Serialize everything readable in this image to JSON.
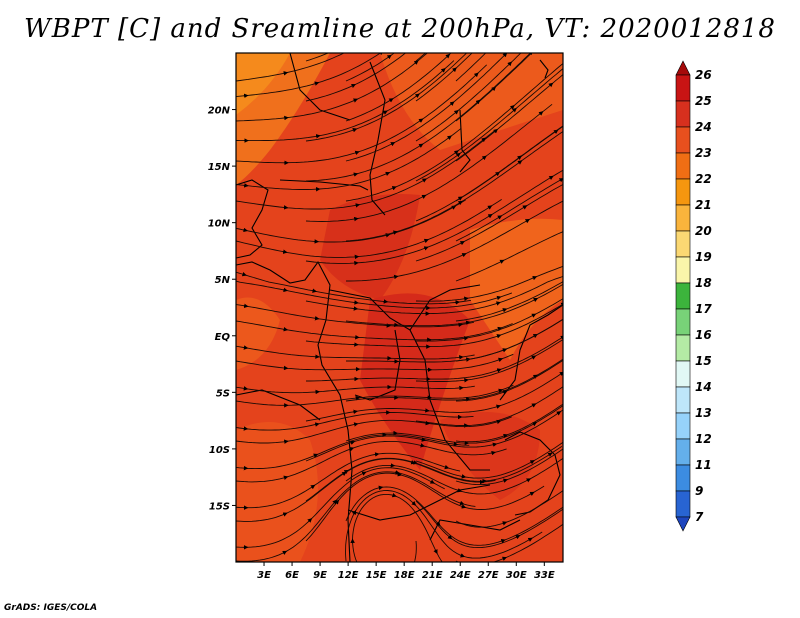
{
  "title": "WBPT [C] and Sreamline at 200hPa, VT: 2020012818",
  "credit": "GrADS: IGES/COLA",
  "map": {
    "field": "wet-bulb potential temperature at 200 hPa",
    "lon_range": [
      0,
      35
    ],
    "lat_range": [
      -20,
      25
    ],
    "lat_ticks": [
      {
        "value": 20,
        "label": "20N"
      },
      {
        "value": 15,
        "label": "15N"
      },
      {
        "value": 10,
        "label": "10N"
      },
      {
        "value": 5,
        "label": "5N"
      },
      {
        "value": 0,
        "label": "EQ"
      },
      {
        "value": -5,
        "label": "5S"
      },
      {
        "value": -10,
        "label": "10S"
      },
      {
        "value": -15,
        "label": "15S"
      }
    ],
    "lon_ticks": [
      {
        "value": 3,
        "label": "3E"
      },
      {
        "value": 6,
        "label": "6E"
      },
      {
        "value": 9,
        "label": "9E"
      },
      {
        "value": 12,
        "label": "12E"
      },
      {
        "value": 15,
        "label": "15E"
      },
      {
        "value": 18,
        "label": "18E"
      },
      {
        "value": 21,
        "label": "21E"
      },
      {
        "value": 24,
        "label": "24E"
      },
      {
        "value": 27,
        "label": "27E"
      },
      {
        "value": 30,
        "label": "30E"
      },
      {
        "value": 33,
        "label": "33E"
      }
    ],
    "dominant_colors": {
      "base": "#e4431c",
      "warm": "#d6271a",
      "cool": "#f0601c",
      "outer": "#f58a1c"
    }
  },
  "colorbar": {
    "labels": [
      "26",
      "25",
      "24",
      "23",
      "22",
      "21",
      "20",
      "19",
      "18",
      "17",
      "16",
      "15",
      "14",
      "13",
      "12",
      "11",
      "9",
      "7"
    ],
    "colors": [
      "#a50a0a",
      "#c81414",
      "#d7301e",
      "#e8501e",
      "#f06e14",
      "#f5960f",
      "#fab43c",
      "#fbd873",
      "#faf5aa",
      "#3cb43c",
      "#78d278",
      "#b4eba5",
      "#e1f8f5",
      "#bee6fa",
      "#96d2fa",
      "#64afeb",
      "#3c8ce1",
      "#2864d2",
      "#1e46be"
    ]
  }
}
